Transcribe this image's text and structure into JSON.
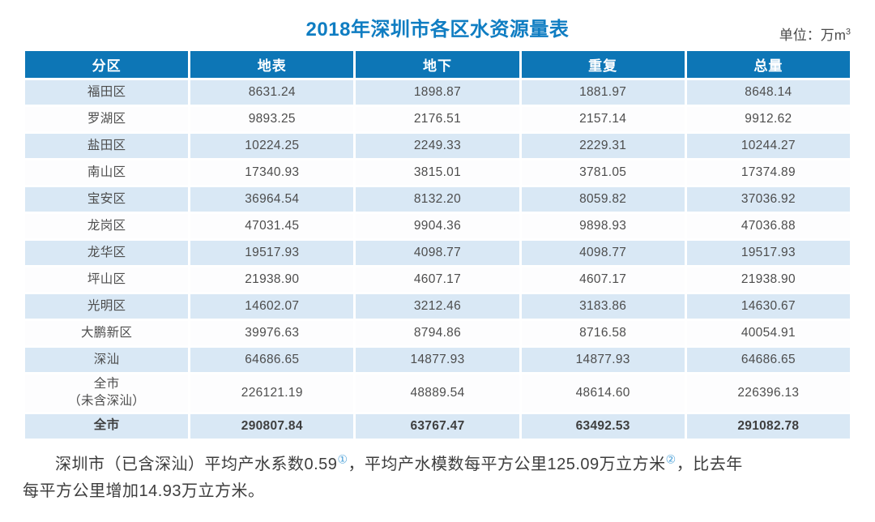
{
  "header": {
    "title": "2018年深圳市各区水资源量表",
    "unit_prefix": "单位：万m",
    "unit_sup": "3"
  },
  "colors": {
    "title_blue": "#0f7dc2",
    "header_bg": "#0d76b6",
    "row_light_blue": "#d9e8f5",
    "row_white": "#fdfdfe",
    "body_text": "#4d4d4d",
    "footnote_sup_blue": "#4aa0d8"
  },
  "chart_data": {
    "type": "table",
    "title": "2018年深圳市各区水资源量表",
    "unit": "万m³",
    "columns": [
      "分区",
      "地表",
      "地下",
      "重复",
      "总量"
    ],
    "rows": [
      {
        "region": "福田区",
        "surface": "8631.24",
        "underground": "1898.87",
        "overlap": "1881.97",
        "total": "8648.14"
      },
      {
        "region": "罗湖区",
        "surface": "9893.25",
        "underground": "2176.51",
        "overlap": "2157.14",
        "total": "9912.62"
      },
      {
        "region": "盐田区",
        "surface": "10224.25",
        "underground": "2249.33",
        "overlap": "2229.31",
        "total": "10244.27"
      },
      {
        "region": "南山区",
        "surface": "17340.93",
        "underground": "3815.01",
        "overlap": "3781.05",
        "total": "17374.89"
      },
      {
        "region": "宝安区",
        "surface": "36964.54",
        "underground": "8132.20",
        "overlap": "8059.82",
        "total": "37036.92"
      },
      {
        "region": "龙岗区",
        "surface": "47031.45",
        "underground": "9904.36",
        "overlap": "9898.93",
        "total": "47036.88"
      },
      {
        "region": "龙华区",
        "surface": "19517.93",
        "underground": "4098.77",
        "overlap": "4098.77",
        "total": "19517.93"
      },
      {
        "region": "坪山区",
        "surface": "21938.90",
        "underground": "4607.17",
        "overlap": "4607.17",
        "total": "21938.90"
      },
      {
        "region": "光明区",
        "surface": "14602.07",
        "underground": "3212.46",
        "overlap": "3183.86",
        "total": "14630.67"
      },
      {
        "region": "大鹏新区",
        "surface": "39976.63",
        "underground": "8794.86",
        "overlap": "8716.58",
        "total": "40054.91"
      },
      {
        "region": "深汕",
        "surface": "64686.65",
        "underground": "14877.93",
        "overlap": "14877.93",
        "total": "64686.65"
      },
      {
        "region": "全市\n（未含深汕）",
        "surface": "226121.19",
        "underground": "48889.54",
        "overlap": "48614.60",
        "total": "226396.13"
      },
      {
        "region": "全市",
        "surface": "290807.84",
        "underground": "63767.47",
        "overlap": "63492.53",
        "total": "291082.78"
      }
    ]
  },
  "footnote": {
    "line1_part1": "深圳市（已含深汕）平均产水系数0.59",
    "line1_sup1": "①",
    "line1_part2": "，平均产水模数每平方公里125.09万立方米",
    "line1_sup2": "②",
    "line1_part3": "，比去年",
    "line2": "每平方公里增加14.93万立方米。"
  }
}
